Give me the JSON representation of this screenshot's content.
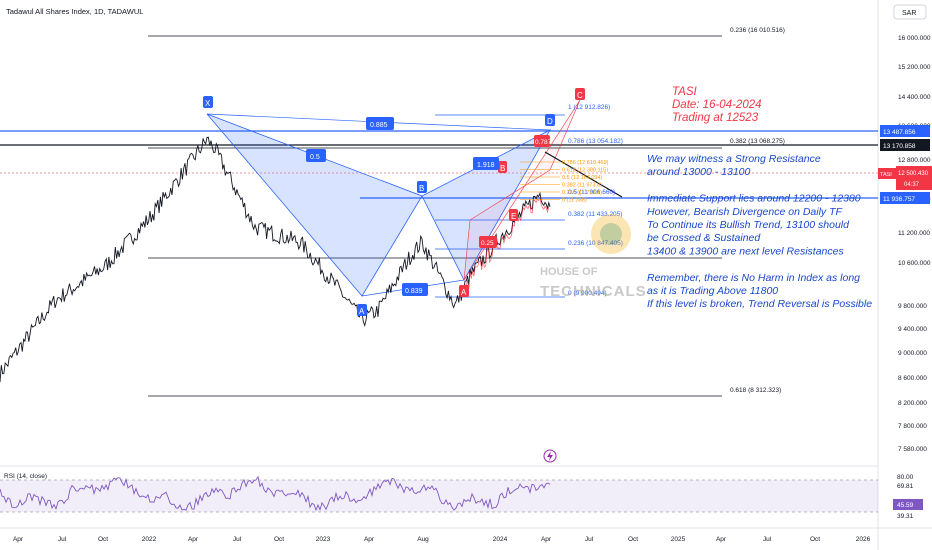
{
  "header": {
    "symbol_title": "Tadawul All Shares Index, 1D, TADAWUL",
    "currency": "SAR"
  },
  "price_axis": {
    "ticks": [
      "16 000.000",
      "15 200.000",
      "14 400.000",
      "13 600.000",
      "12 800.000",
      "12 000.000",
      "11 200.000",
      "10 600.000",
      "9 800.000",
      "9 400.000",
      "9 000.000",
      "8 600.000",
      "8 200.000",
      "7 800.000",
      "7 580.000"
    ],
    "badge_high": "13 487.856",
    "badge_black": "13 170.858",
    "badge_last": "12 500.430",
    "badge_timer": "04:37",
    "badge_support": "11 936.757",
    "tasi_label": "TASI"
  },
  "time_axis": {
    "labels": [
      "Apr",
      "Jul",
      "Oct",
      "2022",
      "Apr",
      "Jul",
      "Oct",
      "2023",
      "Apr",
      "Aug",
      "2024",
      "Apr",
      "Jul",
      "Oct",
      "2025",
      "Apr",
      "Jul",
      "Oct",
      "2026"
    ]
  },
  "fib_labels": {
    "top": "0.236 (16 010.516)",
    "r382": "0.382 (13 068.275)",
    "bottom": "0.618 (8 312.323)",
    "one": "1 (12 912.826)",
    "r786": "0.786 (13 054.182)",
    "r382b": "0.382 (11 433.205)",
    "r236b": "0.236 (10 847.405)",
    "zero": "0 (9 900.494)",
    "c5": "0.5 (11 906.660)",
    "stack": [
      "0.786 (12 619.469)",
      "0.618 (12 380.115)",
      "0.5 (12 167.094)",
      "0.382 (11 973.8)",
      "0.236 (11 728.1)",
      "0 (11 388)"
    ]
  },
  "pattern": {
    "points": {
      "X": "X",
      "A": "A",
      "B": "B",
      "C": "C",
      "D": "D"
    },
    "ratios": {
      "xb": "0.5",
      "ac": "0.885",
      "bd": "1.918",
      "xd": "0.839",
      "lower": "0.787",
      "aa": "0.25",
      "cc": "0.25"
    },
    "marker_a": "A",
    "marker_c": "C",
    "marker_b": "B",
    "marker_e": "E"
  },
  "annotation": {
    "red_lines": [
      "TASI",
      "Date: 16-04-2024",
      "Trading at 12523"
    ],
    "blue_lines": [
      "We may witness a Strong Resistance",
      "around 13000 - 13100",
      "",
      "Immediate Support lies around 12200 - 12380",
      "However, Bearish Divergence on Daily TF",
      "To Continue its Bullish Trend, 13100 should",
      "be Crossed & Sustained",
      "13400 & 13900 are next level Resistances",
      "",
      "Remember, there is No Harm in Index as long",
      "as it is Trading Above 11800",
      "If this level is broken, Trend Reversal is Possible"
    ]
  },
  "watermark": {
    "line1": "HOUSE OF",
    "line2": "TECHNICALS"
  },
  "rsi": {
    "title": "RSI (14, close)",
    "ticks": [
      "80.00",
      "69.81",
      "45.59",
      "39.31"
    ],
    "badge": "45.59"
  },
  "chart_data": {
    "type": "line",
    "title": "Tadawul All Shares Index, 1D, TADAWUL",
    "x": [
      "2021-04",
      "2021-07",
      "2021-10",
      "2022-01",
      "2022-04",
      "2022-05",
      "2022-07",
      "2022-10",
      "2023-01",
      "2023-03",
      "2023-04",
      "2023-06",
      "2023-08",
      "2023-10",
      "2023-11",
      "2024-01",
      "2024-03",
      "2024-04"
    ],
    "series": [
      {
        "values": [
          9100,
          10600,
          11300,
          12300,
          13900,
          13700,
          12100,
          11800,
          10800,
          10200,
          10400,
          11500,
          11800,
          10500,
          11100,
          11900,
          12800,
          12523
        ]
      }
    ],
    "ylim": [
      7500,
      16200
    ],
    "last_price": 12500.43,
    "levels": [
      13487.856,
      13170.858,
      11936.757
    ],
    "rsi": {
      "last": 45.59,
      "bands": [
        80,
        69.81,
        39.31
      ]
    }
  }
}
